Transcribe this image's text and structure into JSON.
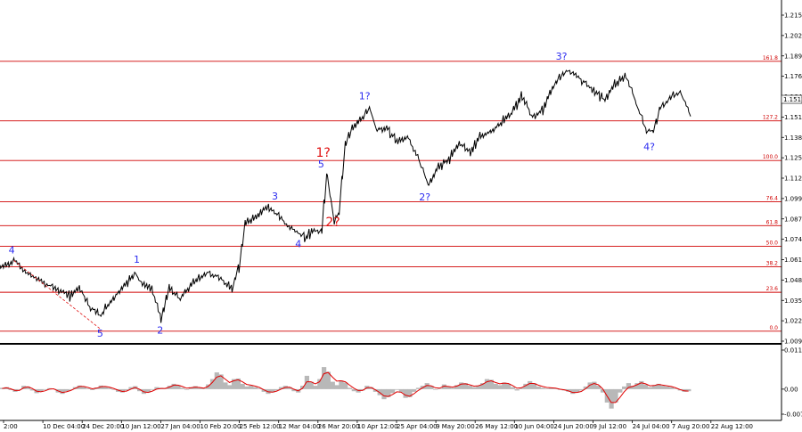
{
  "chart_data": [
    {
      "type": "line",
      "grid": false,
      "ylim": [
        1.0097,
        1.2151
      ],
      "y_ticks": [
        "1.2151",
        "1.2020",
        "1.1895",
        "1.1767",
        "1.1642",
        "1.1513",
        "1.1387",
        "1.1255",
        "1.1127",
        "1.0997",
        "1.0872",
        "1.0742",
        "1.0612",
        "1.0482",
        "1.0357",
        "1.0227",
        "1.0097"
      ],
      "price_tag": "1.1513",
      "x_ticks": [
        "2:00",
        "10 Dec 04:00",
        "24 Dec 20:00",
        "10 Jan 12:00",
        "27 Jan 04:00",
        "10 Feb 20:00",
        "25 Feb 12:00",
        "12 Mar 04:00",
        "26 Mar 20:00",
        "10 Apr 12:00",
        "25 Apr 04:00",
        "9 May 20:00",
        "26 May 12:00",
        "10 Jun 04:00",
        "24 Jun 20:00",
        "9 Jul 12:00",
        "24 Jul 04:00",
        "7 Aug 20:00",
        "22 Aug 12:00"
      ],
      "price_path": [
        [
          0,
          1.056
        ],
        [
          0.02,
          1.0605
        ],
        [
          0.04,
          1.052
        ],
        [
          0.06,
          1.047
        ],
        [
          0.08,
          1.043
        ],
        [
          0.1,
          1.038
        ],
        [
          0.115,
          1.044
        ],
        [
          0.13,
          1.031
        ],
        [
          0.145,
          1.0255
        ],
        [
          0.16,
          1.035
        ],
        [
          0.18,
          1.045
        ],
        [
          0.195,
          1.053
        ],
        [
          0.205,
          1.046
        ],
        [
          0.22,
          1.042
        ],
        [
          0.232,
          1.0245
        ],
        [
          0.245,
          1.043
        ],
        [
          0.26,
          1.036
        ],
        [
          0.28,
          1.047
        ],
        [
          0.3,
          1.053
        ],
        [
          0.32,
          1.049
        ],
        [
          0.335,
          1.042
        ],
        [
          0.345,
          1.056
        ],
        [
          0.355,
          1.084
        ],
        [
          0.37,
          1.088
        ],
        [
          0.385,
          1.094
        ],
        [
          0.4,
          1.09
        ],
        [
          0.415,
          1.083
        ],
        [
          0.43,
          1.078
        ],
        [
          0.44,
          1.075
        ],
        [
          0.455,
          1.079
        ],
        [
          0.465,
          1.078
        ],
        [
          0.473,
          1.115
        ],
        [
          0.483,
          1.086
        ],
        [
          0.49,
          1.09
        ],
        [
          0.5,
          1.135
        ],
        [
          0.51,
          1.145
        ],
        [
          0.525,
          1.15
        ],
        [
          0.535,
          1.157
        ],
        [
          0.545,
          1.143
        ],
        [
          0.56,
          1.143
        ],
        [
          0.575,
          1.136
        ],
        [
          0.59,
          1.138
        ],
        [
          0.605,
          1.125
        ],
        [
          0.62,
          1.108
        ],
        [
          0.635,
          1.12
        ],
        [
          0.65,
          1.124
        ],
        [
          0.665,
          1.135
        ],
        [
          0.68,
          1.129
        ],
        [
          0.695,
          1.138
        ],
        [
          0.71,
          1.142
        ],
        [
          0.725,
          1.147
        ],
        [
          0.74,
          1.153
        ],
        [
          0.755,
          1.164
        ],
        [
          0.77,
          1.151
        ],
        [
          0.785,
          1.155
        ],
        [
          0.8,
          1.17
        ],
        [
          0.81,
          1.176
        ],
        [
          0.82,
          1.18
        ],
        [
          0.83,
          1.179
        ],
        [
          0.845,
          1.173
        ],
        [
          0.86,
          1.167
        ],
        [
          0.875,
          1.162
        ],
        [
          0.89,
          1.172
        ],
        [
          0.905,
          1.177
        ],
        [
          0.915,
          1.167
        ],
        [
          0.925,
          1.154
        ],
        [
          0.935,
          1.144
        ],
        [
          0.945,
          1.141
        ],
        [
          0.955,
          1.157
        ],
        [
          0.965,
          1.16
        ],
        [
          0.975,
          1.165
        ],
        [
          0.985,
          1.166
        ],
        [
          1.0,
          1.1513
        ]
      ],
      "fibonacci_levels": [
        {
          "label": "161.8",
          "value": 1.186
        },
        {
          "label": "127.2",
          "value": 1.1485
        },
        {
          "label": "100.0",
          "value": 1.1235
        },
        {
          "label": "76.4",
          "value": 1.0975
        },
        {
          "label": "61.8",
          "value": 1.0825
        },
        {
          "label": "50.0",
          "value": 1.0695
        },
        {
          "label": "38.2",
          "value": 1.0565
        },
        {
          "label": "23.6",
          "value": 1.0405
        },
        {
          "label": "0.0",
          "value": 1.016
        }
      ],
      "wave_labels": [
        {
          "text": "4",
          "x": 0.017,
          "y": 1.065,
          "color": "blue"
        },
        {
          "text": "5",
          "x": 0.145,
          "y": 1.0125,
          "color": "blue"
        },
        {
          "text": "1",
          "x": 0.198,
          "y": 1.059,
          "color": "blue"
        },
        {
          "text": "2",
          "x": 0.232,
          "y": 1.0145,
          "color": "blue"
        },
        {
          "text": "3",
          "x": 0.398,
          "y": 1.099,
          "color": "blue"
        },
        {
          "text": "4",
          "x": 0.432,
          "y": 1.069,
          "color": "blue"
        },
        {
          "text": "5",
          "x": 0.465,
          "y": 1.119,
          "color": "blue"
        },
        {
          "text": "1?",
          "x": 0.468,
          "y": 1.126,
          "color": "red"
        },
        {
          "text": "2?",
          "x": 0.482,
          "y": 1.082,
          "color": "red"
        },
        {
          "text": "1?",
          "x": 0.528,
          "y": 1.162,
          "color": "blue"
        },
        {
          "text": "2?",
          "x": 0.615,
          "y": 1.0985,
          "color": "blue"
        },
        {
          "text": "3?",
          "x": 0.813,
          "y": 1.187,
          "color": "blue"
        },
        {
          "text": "4?",
          "x": 0.94,
          "y": 1.13,
          "color": "blue"
        }
      ]
    },
    {
      "type": "area",
      "ylim": [
        -0.0075,
        0.0117
      ],
      "y_ticks": [
        "0.01174",
        "0.00",
        "-0.00757"
      ],
      "histogram": [
        0.0004,
        0.0006,
        -0.0003,
        -0.0008,
        -0.0002,
        0.001,
        0.0008,
        -0.0004,
        -0.0012,
        -0.0008,
        -0.0002,
        0.0003,
        0.0001,
        -0.001,
        -0.0014,
        -0.0006,
        -0.0002,
        0.0006,
        0.0011,
        0.0008,
        0.0002,
        -0.0003,
        0.0005,
        0.0011,
        0.0008,
        0.0004,
        -0.0002,
        -0.0008,
        -0.001,
        -0.0004,
        0.0006,
        0.0009,
        -0.0006,
        -0.0014,
        -0.001,
        -0.0002,
        0.0006,
        0.0004,
        0.0002,
        0.001,
        0.0016,
        0.0012,
        0.0004,
        -0.0002,
        0.0006,
        0.0009,
        0.0004,
        0.0002,
        0.0014,
        0.003,
        0.005,
        0.0044,
        0.002,
        0.0012,
        0.003,
        0.0032,
        0.0016,
        0.0008,
        0.001,
        0.0006,
        0.0002,
        -0.0008,
        -0.0014,
        -0.001,
        -0.0004,
        0.0006,
        0.001,
        0.0006,
        -0.0006,
        -0.001,
        0.001,
        0.004,
        0.0022,
        0.001,
        0.003,
        0.0066,
        0.0052,
        0.0022,
        0.0012,
        0.0026,
        0.002,
        0.0004,
        -0.0006,
        -0.001,
        -0.0004,
        0.001,
        0.0006,
        -0.0008,
        -0.0018,
        -0.003,
        -0.0024,
        -0.0012,
        -0.0002,
        -0.001,
        -0.0026,
        -0.0024,
        -0.0008,
        0.0004,
        0.001,
        0.0018,
        0.001,
        -0.0002,
        0.0002,
        0.0014,
        0.0008,
        0.0004,
        0.0012,
        0.002,
        0.0018,
        0.001,
        0.0006,
        0.001,
        0.0018,
        0.003,
        0.0028,
        0.0016,
        0.0012,
        0.002,
        0.0016,
        0.0006,
        -0.0004,
        0.0004,
        0.0016,
        0.0024,
        0.0018,
        0.0008,
        0.0004,
        0.0002,
        0.0004,
        0.0002,
        -0.0002,
        -0.0004,
        -0.0008,
        -0.0014,
        -0.001,
        -0.0004,
        0.0008,
        0.002,
        0.0022,
        0.001,
        -0.001,
        -0.004,
        -0.0058,
        -0.004,
        -0.001,
        0.0008,
        0.0018,
        0.001,
        0.0018,
        0.0024,
        0.0014,
        0.0006,
        0.0012,
        0.0016,
        0.001,
        0.0008,
        0.0006,
        0.0002,
        -0.0004,
        -0.0008,
        -0.0006
      ],
      "signal": [
        0.0002,
        0.0004,
        0.0001,
        -0.0004,
        -0.0004,
        0.0004,
        0.0007,
        0.0002,
        -0.0006,
        -0.0008,
        -0.0005,
        0.0,
        0.0001,
        -0.0005,
        -0.001,
        -0.0008,
        -0.0004,
        0.0002,
        0.0008,
        0.0008,
        0.0005,
        0.0001,
        0.0003,
        0.0007,
        0.0008,
        0.0006,
        0.0002,
        -0.0003,
        -0.0007,
        -0.0006,
        0.0,
        0.0005,
        0.0,
        -0.0008,
        -0.001,
        -0.0006,
        0.0,
        0.0002,
        0.0002,
        0.0006,
        0.0012,
        0.0012,
        0.0008,
        0.0003,
        0.0004,
        0.0006,
        0.0005,
        0.0003,
        0.0008,
        0.002,
        0.0036,
        0.004,
        0.003,
        0.002,
        0.0025,
        0.0028,
        0.0022,
        0.0014,
        0.0012,
        0.0009,
        0.0005,
        -0.0002,
        -0.0008,
        -0.0009,
        -0.0006,
        0.0,
        0.0005,
        0.0006,
        0.0,
        -0.0005,
        0.0002,
        0.0022,
        0.0022,
        0.0016,
        0.0022,
        0.0046,
        0.005,
        0.0036,
        0.0024,
        0.0025,
        0.0022,
        0.0012,
        0.0003,
        -0.0004,
        -0.0004,
        0.0004,
        0.0005,
        -0.0002,
        -0.001,
        -0.002,
        -0.0022,
        -0.0016,
        -0.0008,
        -0.0009,
        -0.0018,
        -0.0021,
        -0.0014,
        -0.0004,
        0.0004,
        0.0011,
        0.001,
        0.0004,
        0.0003,
        0.0009,
        0.0008,
        0.0006,
        0.0009,
        0.0015,
        0.0016,
        0.0013,
        0.0009,
        0.001,
        0.0014,
        0.0022,
        0.0025,
        0.002,
        0.0016,
        0.0018,
        0.0017,
        0.0011,
        0.0003,
        0.0004,
        0.001,
        0.0017,
        0.0017,
        0.0012,
        0.0008,
        0.0005,
        0.0004,
        0.0003,
        0.0,
        -0.0002,
        -0.0005,
        -0.001,
        -0.001,
        -0.0007,
        0.0001,
        0.0012,
        0.0017,
        0.0013,
        0.0001,
        -0.002,
        -0.004,
        -0.004,
        -0.0025,
        -0.0008,
        0.0005,
        0.0008,
        0.0013,
        0.0019,
        0.0016,
        0.001,
        0.0011,
        0.0014,
        0.0012,
        0.001,
        0.0008,
        0.0004,
        -0.0001,
        -0.0005,
        -0.0006
      ]
    }
  ],
  "colors": {
    "price": "#000000",
    "fibonacci": "#d00000",
    "oscillator_signal": "#e00000",
    "oscillator_histogram": "#b8b8b8",
    "wave_blue": "#2a2af0",
    "wave_red": "#e01010"
  }
}
